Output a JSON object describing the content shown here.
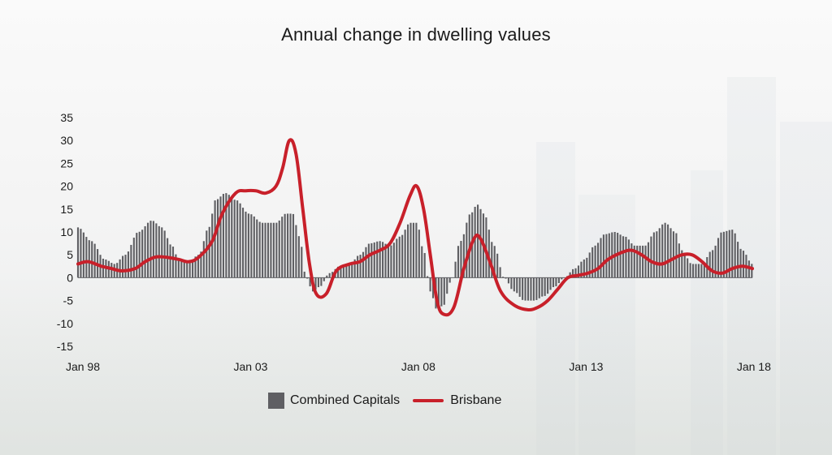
{
  "chart_data": {
    "type": "bar",
    "title": "Annual change in dwelling values",
    "xlabel": "",
    "ylabel": "",
    "ylim": [
      -15,
      35
    ],
    "yticks": [
      35,
      30,
      25,
      20,
      15,
      10,
      5,
      0,
      -5,
      -10,
      -15
    ],
    "xlim": [
      1998.0,
      2018.1
    ],
    "xticks": [
      {
        "label": "Jan 98",
        "x": 1998.0
      },
      {
        "label": "Jan 03",
        "x": 2003.0
      },
      {
        "label": "Jan 08",
        "x": 2008.0
      },
      {
        "label": "Jan 13",
        "x": 2013.0
      },
      {
        "label": "Jan 18",
        "x": 2018.0
      }
    ],
    "legend_position": "bottom-center",
    "series": [
      {
        "name": "Combined Capitals",
        "kind": "bars",
        "color": "#5f5f63",
        "points": [
          [
            1998.0,
            11
          ],
          [
            1998.4,
            8
          ],
          [
            1998.8,
            4
          ],
          [
            1999.1,
            3
          ],
          [
            1999.4,
            5
          ],
          [
            1999.8,
            10
          ],
          [
            2000.2,
            12.5
          ],
          [
            2000.5,
            11
          ],
          [
            2000.8,
            7
          ],
          [
            2001.0,
            4
          ],
          [
            2001.3,
            3.5
          ],
          [
            2001.6,
            5
          ],
          [
            2001.9,
            11
          ],
          [
            2002.1,
            17
          ],
          [
            2002.4,
            18.5
          ],
          [
            2002.7,
            17
          ],
          [
            2003.1,
            14
          ],
          [
            2003.5,
            12
          ],
          [
            2003.9,
            12
          ],
          [
            2004.2,
            14
          ],
          [
            2004.4,
            14
          ],
          [
            2004.6,
            9
          ],
          [
            2004.8,
            0
          ],
          [
            2005.0,
            -3
          ],
          [
            2005.2,
            -2
          ],
          [
            2005.5,
            1
          ],
          [
            2005.8,
            2.5
          ],
          [
            2006.1,
            3
          ],
          [
            2006.4,
            5
          ],
          [
            2006.7,
            7.5
          ],
          [
            2007.0,
            8
          ],
          [
            2007.3,
            7
          ],
          [
            2007.6,
            9
          ],
          [
            2007.9,
            12
          ],
          [
            2008.1,
            12
          ],
          [
            2008.3,
            6
          ],
          [
            2008.5,
            -3
          ],
          [
            2008.7,
            -7
          ],
          [
            2008.9,
            -6
          ],
          [
            2009.1,
            -1
          ],
          [
            2009.4,
            8
          ],
          [
            2009.7,
            14
          ],
          [
            2009.9,
            16
          ],
          [
            2010.1,
            14
          ],
          [
            2010.4,
            7
          ],
          [
            2010.7,
            0
          ],
          [
            2011.0,
            -3
          ],
          [
            2011.3,
            -5
          ],
          [
            2011.6,
            -5
          ],
          [
            2011.9,
            -4
          ],
          [
            2012.2,
            -2
          ],
          [
            2012.5,
            0
          ],
          [
            2012.8,
            2
          ],
          [
            2013.1,
            4
          ],
          [
            2013.4,
            7
          ],
          [
            2013.7,
            9.5
          ],
          [
            2014.0,
            10
          ],
          [
            2014.3,
            9
          ],
          [
            2014.6,
            7
          ],
          [
            2014.9,
            7
          ],
          [
            2015.2,
            10
          ],
          [
            2015.5,
            12
          ],
          [
            2015.8,
            10
          ],
          [
            2016.0,
            6
          ],
          [
            2016.3,
            3
          ],
          [
            2016.6,
            3
          ],
          [
            2016.9,
            6
          ],
          [
            2017.2,
            10
          ],
          [
            2017.5,
            10.5
          ],
          [
            2017.8,
            6
          ],
          [
            2018.1,
            3
          ]
        ]
      },
      {
        "name": "Brisbane",
        "kind": "line",
        "color": "#c8202a",
        "points": [
          [
            1998.0,
            3
          ],
          [
            1998.3,
            3.5
          ],
          [
            1998.7,
            2.5
          ],
          [
            1999.0,
            2
          ],
          [
            1999.3,
            1.5
          ],
          [
            1999.7,
            2
          ],
          [
            2000.0,
            3.5
          ],
          [
            2000.3,
            4.5
          ],
          [
            2000.6,
            4.5
          ],
          [
            2001.0,
            4
          ],
          [
            2001.3,
            3.5
          ],
          [
            2001.6,
            4.5
          ],
          [
            2002.0,
            8
          ],
          [
            2002.3,
            14
          ],
          [
            2002.7,
            18.5
          ],
          [
            2003.0,
            19
          ],
          [
            2003.3,
            19
          ],
          [
            2003.6,
            18.5
          ],
          [
            2003.9,
            20
          ],
          [
            2004.1,
            24
          ],
          [
            2004.3,
            30
          ],
          [
            2004.5,
            27
          ],
          [
            2004.7,
            15
          ],
          [
            2004.9,
            3
          ],
          [
            2005.1,
            -3.5
          ],
          [
            2005.4,
            -3.5
          ],
          [
            2005.7,
            1.5
          ],
          [
            2006.1,
            3
          ],
          [
            2006.4,
            3.5
          ],
          [
            2006.7,
            5
          ],
          [
            2007.0,
            6
          ],
          [
            2007.3,
            7.5
          ],
          [
            2007.6,
            12
          ],
          [
            2007.9,
            18
          ],
          [
            2008.1,
            20
          ],
          [
            2008.3,
            15
          ],
          [
            2008.5,
            5
          ],
          [
            2008.7,
            -5
          ],
          [
            2008.9,
            -8
          ],
          [
            2009.2,
            -6.5
          ],
          [
            2009.5,
            2
          ],
          [
            2009.8,
            8.5
          ],
          [
            2010.0,
            8.5
          ],
          [
            2010.3,
            3
          ],
          [
            2010.6,
            -3
          ],
          [
            2011.0,
            -6
          ],
          [
            2011.4,
            -7
          ],
          [
            2011.7,
            -6.5
          ],
          [
            2012.0,
            -5
          ],
          [
            2012.3,
            -2.5
          ],
          [
            2012.6,
            0
          ],
          [
            2012.9,
            0.5
          ],
          [
            2013.2,
            1
          ],
          [
            2013.5,
            2
          ],
          [
            2013.8,
            4
          ],
          [
            2014.2,
            5.5
          ],
          [
            2014.5,
            6
          ],
          [
            2014.8,
            5
          ],
          [
            2015.1,
            3.5
          ],
          [
            2015.4,
            3
          ],
          [
            2015.7,
            4
          ],
          [
            2016.0,
            5
          ],
          [
            2016.3,
            5
          ],
          [
            2016.6,
            3.5
          ],
          [
            2016.9,
            1.5
          ],
          [
            2017.2,
            1
          ],
          [
            2017.5,
            2
          ],
          [
            2017.8,
            2.5
          ],
          [
            2018.1,
            2
          ]
        ]
      }
    ]
  },
  "legend": {
    "bar_label": "Combined Capitals",
    "line_label": "Brisbane"
  }
}
